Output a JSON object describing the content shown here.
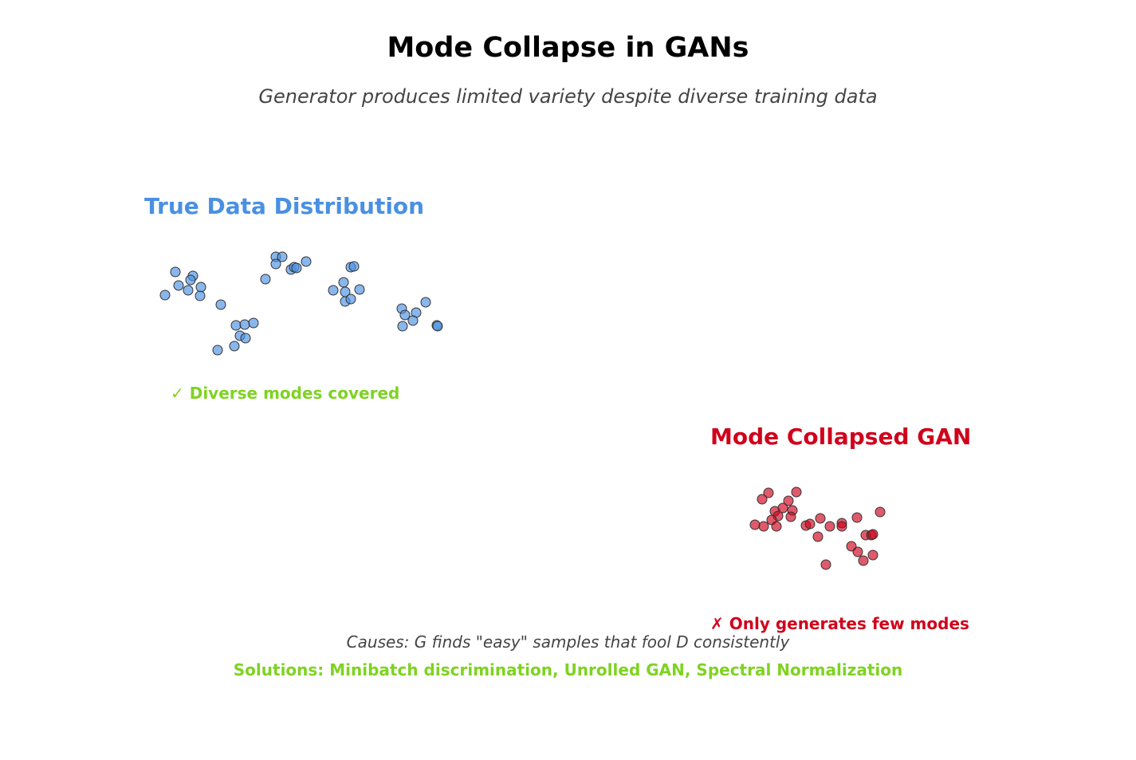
{
  "title": "Mode Collapse in GANs",
  "subtitle": "Generator produces limited variety despite diverse training data",
  "panels": {
    "true": {
      "title": "True Data Distribution",
      "caption": "✓ Diverse modes covered",
      "color": "#4a90e2",
      "caption_color": "#7ed321"
    },
    "collapsed": {
      "title": "Mode Collapsed GAN",
      "caption": "✗ Only generates few modes",
      "color": "#d0021b"
    }
  },
  "footer": {
    "causes": "Causes: G finds \"easy\" samples that fool D consistently",
    "solutions": "Solutions: Minibatch discrimination, Unrolled GAN, Spectral Normalization"
  }
}
